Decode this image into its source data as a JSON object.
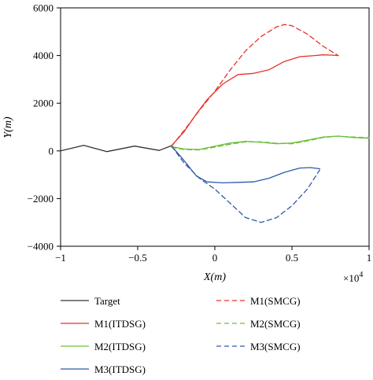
{
  "chart_data": {
    "type": "line",
    "title": "",
    "xlabel": "X(m)",
    "ylabel": "Y(m)",
    "x_exponent_label": "×10",
    "x_exponent_power": "4",
    "xlim": [
      -1,
      1
    ],
    "ylim": [
      -4000,
      6000
    ],
    "xticks": [
      -1,
      -0.5,
      0,
      0.5,
      1
    ],
    "xtick_labels": [
      "−1",
      "−0.5",
      "0",
      "0.5",
      "1"
    ],
    "yticks": [
      -4000,
      -2000,
      0,
      2000,
      4000,
      6000
    ],
    "ytick_labels": [
      "−4000",
      "−2000",
      "0",
      "2000",
      "4000",
      "6000"
    ],
    "grid": false,
    "legend_placement": "below",
    "series": [
      {
        "name": "Target",
        "color": "#333333",
        "dash": "solid",
        "x": [
          -1.0,
          -0.85,
          -0.7,
          -0.52,
          -0.36,
          -0.28
        ],
        "y": [
          0,
          230,
          -30,
          200,
          20,
          220
        ]
      },
      {
        "name": "M1(ITDSG)",
        "color": "#e8312a",
        "dash": "solid",
        "x": [
          -0.28,
          -0.2,
          -0.12,
          -0.05,
          0.05,
          0.15,
          0.25,
          0.35,
          0.45,
          0.55,
          0.65,
          0.7,
          0.75,
          0.8
        ],
        "y": [
          220,
          800,
          1550,
          2150,
          2800,
          3200,
          3250,
          3400,
          3750,
          3950,
          4000,
          4030,
          4020,
          4000
        ]
      },
      {
        "name": "M2(ITDSG)",
        "color": "#6dbf3a",
        "dash": "solid",
        "x": [
          -0.28,
          -0.2,
          -0.1,
          0.0,
          0.1,
          0.2,
          0.3,
          0.4,
          0.5,
          0.6,
          0.7,
          0.8,
          0.9,
          1.0
        ],
        "y": [
          180,
          80,
          60,
          200,
          330,
          400,
          360,
          300,
          330,
          450,
          580,
          620,
          560,
          530
        ]
      },
      {
        "name": "M3(ITDSG)",
        "color": "#3159a8",
        "dash": "solid",
        "x": [
          -0.28,
          -0.2,
          -0.12,
          -0.05,
          0.05,
          0.15,
          0.25,
          0.35,
          0.45,
          0.55,
          0.62,
          0.68
        ],
        "y": [
          200,
          -400,
          -1050,
          -1300,
          -1340,
          -1320,
          -1300,
          -1150,
          -900,
          -720,
          -700,
          -750
        ]
      },
      {
        "name": "M1(SMCG)",
        "color": "#e8312a",
        "dash": "dashed",
        "x": [
          -0.28,
          -0.2,
          -0.1,
          0.0,
          0.1,
          0.2,
          0.3,
          0.4,
          0.45,
          0.5,
          0.6,
          0.7,
          0.8
        ],
        "y": [
          200,
          850,
          1700,
          2500,
          3400,
          4200,
          4800,
          5200,
          5300,
          5250,
          4900,
          4400,
          4000
        ]
      },
      {
        "name": "M2(SMCG)",
        "color": "#6dbf3a",
        "dash": "dashed",
        "x": [
          -0.28,
          -0.2,
          -0.1,
          0.0,
          0.1,
          0.2,
          0.3,
          0.4,
          0.5,
          0.6,
          0.7,
          0.8,
          0.9,
          1.0
        ],
        "y": [
          150,
          60,
          40,
          160,
          280,
          380,
          380,
          320,
          300,
          420,
          560,
          620,
          580,
          550
        ]
      },
      {
        "name": "M3(SMCG)",
        "color": "#3159a8",
        "dash": "dashed",
        "x": [
          -0.28,
          -0.2,
          -0.1,
          0.0,
          0.1,
          0.2,
          0.3,
          0.4,
          0.5,
          0.6,
          0.68
        ],
        "y": [
          200,
          -500,
          -1150,
          -1600,
          -2200,
          -2800,
          -3000,
          -2800,
          -2300,
          -1600,
          -800
        ]
      }
    ]
  }
}
